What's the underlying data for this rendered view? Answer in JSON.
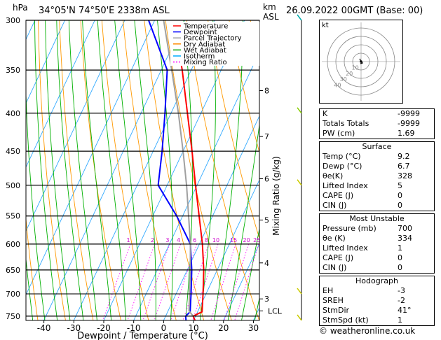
{
  "header": {
    "pressure_unit": "hPa",
    "location": "34°05'N  74°50'E  2338m  ASL",
    "km_label": "km",
    "asl_label": "ASL",
    "datetime": "26.09.2022  00GMT  (Base: 00)"
  },
  "legend": [
    {
      "label": "Temperature",
      "color": "#ff0000",
      "dash": ""
    },
    {
      "label": "Dewpoint",
      "color": "#0000ff",
      "dash": ""
    },
    {
      "label": "Parcel Trajectory",
      "color": "#a0a0a0",
      "dash": ""
    },
    {
      "label": "Dry Adiabat",
      "color": "#ff8c00",
      "dash": ""
    },
    {
      "label": "Wet Adiabat",
      "color": "#00a000",
      "dash": ""
    },
    {
      "label": "Isotherm",
      "color": "#00aaff",
      "dash": ""
    },
    {
      "label": "Mixing Ratio",
      "color": "#ff00ff",
      "dash": "2,2"
    }
  ],
  "chart_data": {
    "type": "line",
    "title": "",
    "xlabel": "Dewpoint / Temperature (°C)",
    "ylabel": "",
    "y2label": "Mixing Ratio (g/kg)",
    "x_ticks": [
      "-40",
      "-30",
      "-20",
      "-10",
      "0",
      "10",
      "20",
      "30"
    ],
    "x_tick_values": [
      -40,
      -30,
      -20,
      -10,
      0,
      10,
      20,
      30
    ],
    "pressure_levels": [
      300,
      350,
      400,
      450,
      500,
      550,
      600,
      650,
      700,
      750
    ],
    "pressure_labels": [
      "300",
      "350",
      "400",
      "450",
      "500",
      "550",
      "600",
      "650",
      "700",
      "750"
    ],
    "ylim_hpa": [
      760,
      300
    ],
    "xlim_at_bottom": [
      -46,
      32
    ],
    "skew_degC_per_axis": 47,
    "km_ticks": [
      {
        "p": 373,
        "label": "8"
      },
      {
        "p": 430,
        "label": "7"
      },
      {
        "p": 490,
        "label": "6"
      },
      {
        "p": 557,
        "label": "5"
      },
      {
        "p": 636,
        "label": "4"
      },
      {
        "p": 711,
        "label": "3"
      }
    ],
    "lcl": {
      "p": 738,
      "label": "LCL"
    },
    "mixing_ratio_values": [
      1,
      2,
      3,
      4,
      6,
      8,
      10,
      15,
      20,
      25
    ],
    "mixing_ratio_labels": [
      "1",
      "2",
      "3",
      "4",
      "6",
      "8",
      "10",
      "15",
      "20",
      "25"
    ],
    "series": [
      {
        "name": "Temperature",
        "color": "#ff0000",
        "points": [
          [
            760,
            10.5
          ],
          [
            750,
            9.2
          ],
          [
            740,
            11.5
          ],
          [
            700,
            9.0
          ],
          [
            650,
            5.5
          ],
          [
            600,
            1.0
          ],
          [
            550,
            -4.5
          ],
          [
            500,
            -10.5
          ],
          [
            450,
            -17.0
          ],
          [
            400,
            -24.5
          ],
          [
            350,
            -33.0
          ],
          [
            340,
            -35.0
          ]
        ]
      },
      {
        "name": "Dewpoint",
        "color": "#0000ff",
        "points": [
          [
            760,
            7.5
          ],
          [
            750,
            6.7
          ],
          [
            740,
            7.5
          ],
          [
            700,
            5.0
          ],
          [
            650,
            1.5
          ],
          [
            600,
            -3.0
          ],
          [
            550,
            -12.0
          ],
          [
            500,
            -23.0
          ],
          [
            450,
            -27.0
          ],
          [
            400,
            -32.0
          ],
          [
            350,
            -38.0
          ],
          [
            300,
            -52.0
          ]
        ]
      },
      {
        "name": "Parcel Trajectory",
        "color": "#a0a0a0",
        "points": [
          [
            750,
            9.2
          ],
          [
            738,
            7.0
          ],
          [
            700,
            4.5
          ],
          [
            650,
            1.0
          ],
          [
            600,
            -3.0
          ],
          [
            550,
            -8.0
          ],
          [
            500,
            -13.5
          ],
          [
            450,
            -20.0
          ],
          [
            400,
            -27.5
          ],
          [
            350,
            -36.5
          ],
          [
            300,
            -47.0
          ]
        ]
      }
    ],
    "isotherms_degC": [
      -110,
      -100,
      -90,
      -80,
      -70,
      -60,
      -50,
      -40,
      -30,
      -20,
      -10,
      0,
      10,
      20,
      30
    ]
  },
  "hodograph": {
    "unit_label": "kt",
    "ring_labels": [
      "10",
      "20",
      "30",
      "40"
    ]
  },
  "indices": [
    {
      "label": "K",
      "value": "-9999"
    },
    {
      "label": "Totals Totals",
      "value": "-9999"
    },
    {
      "label": "PW (cm)",
      "value": "1.69"
    }
  ],
  "surface": {
    "title": "Surface",
    "rows": [
      {
        "label": "Temp (°C)",
        "value": "9.2"
      },
      {
        "label": "Dewp (°C)",
        "value": "6.7"
      },
      {
        "label": "θe(K)",
        "value": "328"
      },
      {
        "label": "Lifted Index",
        "value": "5"
      },
      {
        "label": "CAPE (J)",
        "value": "0"
      },
      {
        "label": "CIN (J)",
        "value": "0"
      }
    ]
  },
  "most_unstable": {
    "title": "Most Unstable",
    "rows": [
      {
        "label": "Pressure (mb)",
        "value": "700"
      },
      {
        "label": "θe (K)",
        "value": "334"
      },
      {
        "label": "Lifted Index",
        "value": "1"
      },
      {
        "label": "CAPE (J)",
        "value": "0"
      },
      {
        "label": "CIN (J)",
        "value": "0"
      }
    ]
  },
  "hodograph_table": {
    "title": "Hodograph",
    "rows": [
      {
        "label": "EH",
        "value": "-3"
      },
      {
        "label": "SREH",
        "value": "-2"
      },
      {
        "label": "StmDir",
        "value": "41°"
      },
      {
        "label": "StmSpd (kt)",
        "value": "1"
      }
    ]
  },
  "copyright": "© weatheronline.co.uk"
}
